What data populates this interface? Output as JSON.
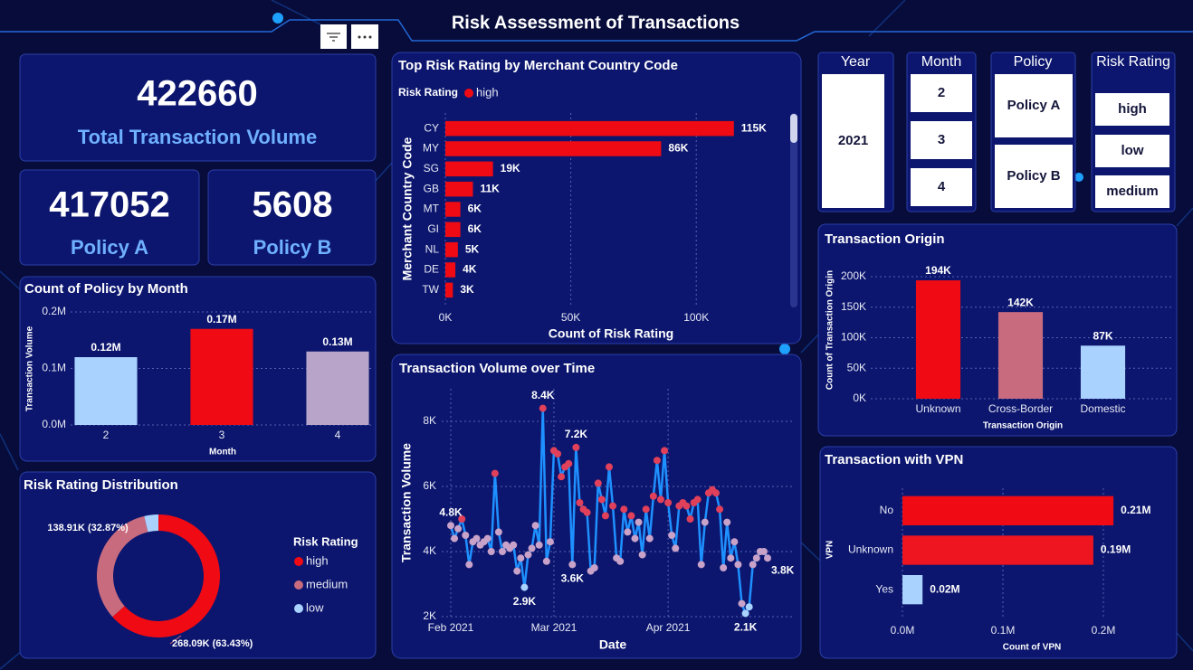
{
  "title": "Risk Assessment of Transactions",
  "kpis": [
    {
      "value": 422660,
      "label": "Total Transaction Volume"
    },
    {
      "value": 417052,
      "label": "Policy A"
    },
    {
      "value": 5608,
      "label": "Policy B"
    }
  ],
  "slicers": [
    {
      "title": "Year",
      "items": [
        "2021"
      ]
    },
    {
      "title": "Month",
      "items": [
        "2",
        "3",
        "4"
      ]
    },
    {
      "title": "Policy",
      "items": [
        "Policy A",
        "Policy B"
      ]
    },
    {
      "title": "Risk Rating",
      "items": [
        "high",
        "low",
        "medium"
      ]
    }
  ],
  "chart_data": [
    {
      "type": "barh",
      "title": "Top Risk Rating by Merchant Country Code",
      "legend_title": "Risk Rating",
      "categories": [
        "CY",
        "MY",
        "SG",
        "GB",
        "MT",
        "GI",
        "NL",
        "DE",
        "TW"
      ],
      "series": [
        {
          "name": "high",
          "color": "#f00a14",
          "values": [
            115000,
            86000,
            19000,
            11000,
            6000,
            6000,
            5000,
            4000,
            3000
          ],
          "value_labels": [
            "115K",
            "86K",
            "19K",
            "11K",
            "6K",
            "6K",
            "5K",
            "4K",
            "3K"
          ]
        }
      ],
      "xlim": [
        0,
        136000
      ],
      "xticks": [
        {
          "value": 0,
          "label": "0K"
        },
        {
          "value": 50000,
          "label": "50K"
        },
        {
          "value": 100000,
          "label": "100K"
        }
      ],
      "x_label": "Count of Risk Rating",
      "y_label": "Merchant Country Code",
      "grid": true
    },
    {
      "type": "bar",
      "title": "Count of Policy by Month",
      "categories": [
        "2",
        "3",
        "4"
      ],
      "values": [
        120000,
        170000,
        130000
      ],
      "value_labels": [
        "0.12M",
        "0.17M",
        "0.13M"
      ],
      "colors": [
        "#a9d2ff",
        "#f00a14",
        "#b7a4c8"
      ],
      "ylim": [
        0,
        200000
      ],
      "yticks": [
        {
          "value": 0,
          "label": "0.0M"
        },
        {
          "value": 100000,
          "label": "0.1M"
        },
        {
          "value": 200000,
          "label": "0.2M"
        }
      ],
      "x_label": "Month",
      "y_label": "Transaction Volume",
      "grid": true
    },
    {
      "type": "pie",
      "title": "Risk Rating Distribution",
      "donut": true,
      "legend_title": "Risk Rating",
      "categories": [
        "high",
        "medium",
        "low"
      ],
      "values": [
        268090,
        138910,
        15660
      ],
      "value_labels": [
        "268.09K (63.43%)",
        "138.91K (32.87%)",
        null
      ],
      "colors": [
        "#f00a14",
        "#c96b7e",
        "#a9d2ff"
      ]
    },
    {
      "type": "line",
      "title": "Transaction Volume over Time",
      "color": "#1e90ff",
      "values": [
        4800,
        4400,
        4700,
        5000,
        4500,
        3600,
        4300,
        4400,
        4200,
        4300,
        4400,
        4000,
        6400,
        4600,
        4000,
        4200,
        4100,
        4200,
        3400,
        3800,
        2900,
        3900,
        4100,
        4800,
        4200,
        8400,
        3700,
        4300,
        7100,
        7000,
        6300,
        6600,
        6700,
        3600,
        7200,
        5500,
        5300,
        5200,
        3400,
        3500,
        6100,
        5600,
        5100,
        6600,
        5400,
        3800,
        3700,
        5300,
        4600,
        5100,
        4400,
        4900,
        3900,
        5300,
        4400,
        5700,
        6800,
        5600,
        7100,
        5500,
        4500,
        4100,
        5400,
        5500,
        5400,
        5000,
        5500,
        5600,
        3600,
        4900,
        5800,
        5900,
        5800,
        5300,
        3500,
        4900,
        3800,
        4300,
        3600,
        2400,
        2100,
        2300,
        3600,
        3800,
        4000,
        4000,
        3800
      ],
      "value_labels": [
        "4.8K",
        null,
        null,
        null,
        null,
        null,
        null,
        null,
        null,
        null,
        null,
        null,
        null,
        null,
        null,
        null,
        null,
        null,
        null,
        null,
        "2.9K",
        null,
        null,
        null,
        null,
        "8.4K",
        null,
        null,
        null,
        null,
        null,
        null,
        null,
        "3.6K",
        "7.2K",
        null,
        null,
        null,
        null,
        null,
        null,
        null,
        null,
        null,
        null,
        null,
        null,
        null,
        null,
        null,
        null,
        null,
        null,
        null,
        null,
        null,
        null,
        null,
        null,
        null,
        null,
        null,
        null,
        null,
        null,
        null,
        null,
        null,
        null,
        null,
        null,
        null,
        null,
        null,
        null,
        null,
        null,
        null,
        null,
        null,
        "2.1K",
        null,
        null,
        null,
        null,
        null,
        "3.8K"
      ],
      "marker_colors": [
        "#c8a2c8",
        "#c8a2c8",
        "#c8a2c8",
        "#e0405a",
        "#c8a2c8",
        "#c8a2c8",
        "#c8a2c8",
        "#c8a2c8",
        "#c8a2c8",
        "#c8a2c8",
        "#c8a2c8",
        "#c8a2c8",
        "#e0405a",
        "#c8a2c8",
        "#c8a2c8",
        "#c8a2c8",
        "#c8a2c8",
        "#c8a2c8",
        "#c8a2c8",
        "#c8a2c8",
        "#a9d2ff",
        "#c8a2c8",
        "#c8a2c8",
        "#c8a2c8",
        "#c8a2c8",
        "#e0405a",
        "#c8a2c8",
        "#c8a2c8",
        "#e0405a",
        "#e0405a",
        "#e0405a",
        "#e0405a",
        "#e0405a",
        "#c8a2c8",
        "#e0405a",
        "#e0405a",
        "#e0405a",
        "#e0405a",
        "#c8a2c8",
        "#c8a2c8",
        "#e0405a",
        "#e0405a",
        "#e0405a",
        "#e0405a",
        "#e0405a",
        "#c8a2c8",
        "#c8a2c8",
        "#e0405a",
        "#c8a2c8",
        "#e0405a",
        "#c8a2c8",
        "#c8a2c8",
        "#c8a2c8",
        "#e0405a",
        "#c8a2c8",
        "#e0405a",
        "#e0405a",
        "#e0405a",
        "#e0405a",
        "#e0405a",
        "#c8a2c8",
        "#c8a2c8",
        "#e0405a",
        "#e0405a",
        "#e0405a",
        "#e0405a",
        "#e0405a",
        "#e0405a",
        "#c8a2c8",
        "#c8a2c8",
        "#e0405a",
        "#e0405a",
        "#e0405a",
        "#e0405a",
        "#c8a2c8",
        "#c8a2c8",
        "#c8a2c8",
        "#c8a2c8",
        "#c8a2c8",
        "#c8a2c8",
        "#a9d2ff",
        "#a9d2ff",
        "#c8a2c8",
        "#c8a2c8",
        "#c8a2c8",
        "#c8a2c8",
        "#c8a2c8"
      ],
      "xlim": [
        0,
        86
      ],
      "xticks": [
        {
          "value": 0,
          "label": "Feb 2021"
        },
        {
          "value": 28,
          "label": "Mar 2021"
        },
        {
          "value": 59,
          "label": "Apr 2021"
        }
      ],
      "ylim": [
        2000,
        9000
      ],
      "yticks": [
        {
          "value": 2000,
          "label": "2K"
        },
        {
          "value": 4000,
          "label": "4K"
        },
        {
          "value": 6000,
          "label": "6K"
        },
        {
          "value": 8000,
          "label": "8K"
        }
      ],
      "x_label": "Date",
      "y_label": "Transaction Volume",
      "grid": true
    },
    {
      "type": "bar",
      "title": "Transaction Origin",
      "categories": [
        "Unknown",
        "Cross-Border",
        "Domestic"
      ],
      "values": [
        194000,
        142000,
        87000
      ],
      "value_labels": [
        "194K",
        "142K",
        "87K"
      ],
      "colors": [
        "#f00a14",
        "#c96b7e",
        "#a9d2ff"
      ],
      "ylim": [
        0,
        220000
      ],
      "yticks": [
        {
          "value": 0,
          "label": "0K"
        },
        {
          "value": 50000,
          "label": "50K"
        },
        {
          "value": 100000,
          "label": "100K"
        },
        {
          "value": 150000,
          "label": "150K"
        },
        {
          "value": 200000,
          "label": "200K"
        }
      ],
      "x_label": "Transaction Origin",
      "y_label": "Count of Transaction Origin",
      "grid": true
    },
    {
      "type": "barh",
      "title": "Transaction with VPN",
      "categories": [
        "No",
        "Unknown",
        "Yes"
      ],
      "values": [
        210000,
        190000,
        20000
      ],
      "value_labels": [
        "0.21M",
        "0.19M",
        "0.02M"
      ],
      "colors": [
        "#f00a14",
        "#ee1520",
        "#a9d2ff"
      ],
      "xlim": [
        0,
        260000
      ],
      "xticks": [
        {
          "value": 0,
          "label": "0.0M"
        },
        {
          "value": 100000,
          "label": "0.1M"
        },
        {
          "value": 200000,
          "label": "0.2M"
        }
      ],
      "x_label": "Count of VPN",
      "y_label": "VPN",
      "grid": true
    }
  ]
}
